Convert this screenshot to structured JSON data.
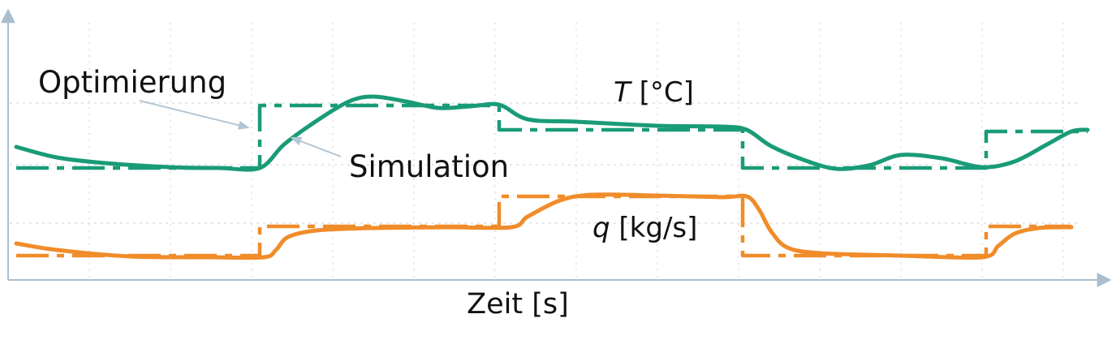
{
  "chart_data": {
    "type": "line",
    "title": "",
    "xlabel": "Zeit [s]",
    "ylabel": "",
    "grid": true,
    "xlim": [
      0,
      1350
    ],
    "ylim": [
      0,
      340
    ],
    "annotations": {
      "optimierung": "Optimierung",
      "simulation": "Simulation",
      "t_label_var": "T",
      "t_label_unit": " [°C]",
      "q_label_var": "q",
      "q_label_unit": " [kg/s]"
    },
    "colors": {
      "T": "#1a9b78",
      "q": "#f08c2a",
      "axis": "#a9bfd0"
    },
    "series": [
      {
        "key": "T_opt",
        "style": "dashdot",
        "color": "#1a9b78",
        "x": [
          10,
          310,
          310,
          605,
          605,
          905,
          905,
          1205,
          1205,
          1330
        ],
        "y": [
          138,
          138,
          215,
          215,
          185,
          185,
          138,
          138,
          183,
          183
        ]
      },
      {
        "key": "T_sim",
        "style": "solid",
        "color": "#1a9b78",
        "x": [
          10,
          60,
          120,
          200,
          260,
          310,
          340,
          380,
          420,
          450,
          490,
          530,
          570,
          605,
          640,
          700,
          800,
          880,
          910,
          940,
          980,
          1020,
          1060,
          1100,
          1150,
          1200,
          1240,
          1280,
          1310,
          1330
        ],
        "y": [
          164,
          151,
          144,
          139,
          138,
          138,
          167,
          196,
          220,
          226,
          220,
          212,
          214,
          216,
          198,
          195,
          190,
          189,
          185,
          165,
          148,
          137,
          141,
          154,
          150,
          139,
          146,
          167,
          183,
          185
        ]
      },
      {
        "key": "q_opt",
        "style": "dashdot",
        "color": "#f08c2a",
        "x": [
          10,
          310,
          310,
          605,
          605,
          905,
          905,
          1205,
          1205,
          1310
        ],
        "y": [
          30,
          30,
          66,
          66,
          103,
          103,
          30,
          30,
          66,
          66
        ]
      },
      {
        "key": "q_sim",
        "style": "solid",
        "color": "#f08c2a",
        "x": [
          10,
          60,
          150,
          250,
          315,
          330,
          345,
          380,
          450,
          540,
          620,
          640,
          680,
          720,
          800,
          880,
          910,
          925,
          940,
          960,
          1000,
          1100,
          1200,
          1220,
          1240,
          1270,
          1310
        ],
        "y": [
          45,
          37,
          29,
          28,
          28,
          37,
          53,
          61,
          64,
          65,
          65,
          78,
          98,
          105,
          104,
          102,
          103,
          87,
          60,
          40,
          33,
          30,
          28,
          42,
          57,
          64,
          65
        ]
      }
    ]
  }
}
